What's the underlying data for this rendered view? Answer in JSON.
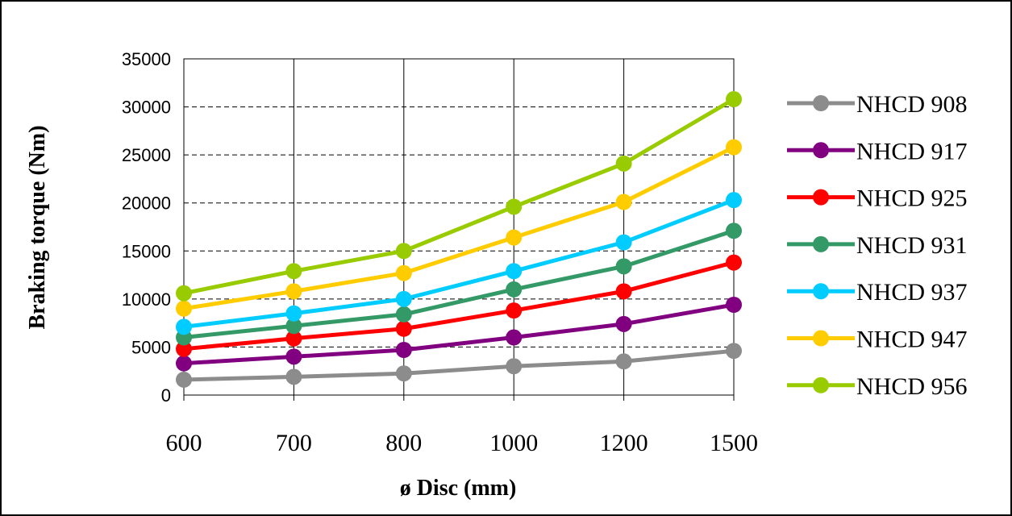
{
  "chart_data": {
    "type": "line",
    "categories": [
      "600",
      "700",
      "800",
      "1000",
      "1200",
      "1500"
    ],
    "xlabel": "ø Disc (mm)",
    "ylabel": "Braking torque (Nm)",
    "ylim": [
      0,
      35000
    ],
    "yticks": [
      0,
      5000,
      10000,
      15000,
      20000,
      25000,
      30000,
      35000
    ],
    "grid": true,
    "legend_position": "right",
    "series": [
      {
        "name": "NHCD 908",
        "color": "#8c8c8c",
        "values": [
          1600,
          1900,
          2250,
          3000,
          3500,
          4600
        ]
      },
      {
        "name": "NHCD 917",
        "color": "#800080",
        "values": [
          3300,
          4000,
          4700,
          6000,
          7400,
          9400
        ]
      },
      {
        "name": "NHCD 925",
        "color": "#ff0000",
        "values": [
          4800,
          5900,
          6900,
          8800,
          10800,
          13800
        ]
      },
      {
        "name": "NHCD 931",
        "color": "#339966",
        "values": [
          6000,
          7200,
          8400,
          11000,
          13400,
          17100
        ]
      },
      {
        "name": "NHCD 937",
        "color": "#00ccff",
        "values": [
          7100,
          8500,
          10000,
          12900,
          15900,
          20300
        ]
      },
      {
        "name": "NHCD 947",
        "color": "#ffcc00",
        "values": [
          9000,
          10800,
          12700,
          16400,
          20100,
          25800
        ]
      },
      {
        "name": "NHCD 956",
        "color": "#99cc00",
        "values": [
          10600,
          12900,
          15000,
          19600,
          24100,
          30800
        ]
      }
    ]
  }
}
